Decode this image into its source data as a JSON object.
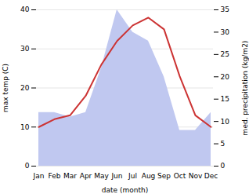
{
  "chart_data": {
    "type": "line",
    "categories": [
      "Jan",
      "Feb",
      "Mar",
      "Apr",
      "May",
      "Jun",
      "Jul",
      "Aug",
      "Sep",
      "Oct",
      "Nov",
      "Dec"
    ],
    "series": [
      {
        "type": "area",
        "axis": "y2",
        "color": "#c0c8f0",
        "values": [
          12,
          12,
          11,
          12,
          22,
          35,
          30,
          28,
          20,
          8,
          8,
          12
        ]
      },
      {
        "type": "line",
        "color": "#cc3333",
        "values": [
          10,
          12,
          13,
          18,
          26,
          32,
          36,
          38,
          35,
          23,
          13,
          10
        ]
      }
    ],
    "xlabel": "date (month)",
    "ylabel": "max temp (C)",
    "y2label": "med. precipitation (kg/m2)",
    "ylim": [
      0,
      40
    ],
    "yticks": [
      0,
      10,
      20,
      30,
      40
    ],
    "y2lim": [
      0,
      35
    ],
    "y2ticks": [
      0,
      5,
      10,
      15,
      20,
      25,
      30,
      35
    ],
    "grid": true
  }
}
